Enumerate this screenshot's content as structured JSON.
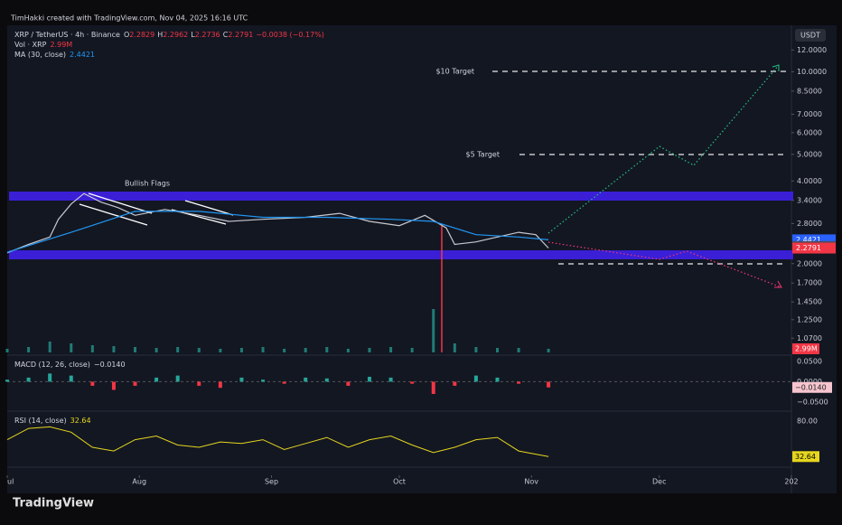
{
  "header": {
    "credit": "TimHakki created with TradingView.com, Nov 04, 2025 16:16 UTC"
  },
  "legend": {
    "symbol": "XRP / TetherUS · 4h · Binance",
    "o_label": "O",
    "open": "2.2829",
    "h_label": "H",
    "high": "2.2962",
    "l_label": "L",
    "low": "2.2736",
    "c_label": "C",
    "close": "2.2791",
    "change": "−0.0038 (−0.17%)",
    "vol_name": "Vol · XRP",
    "vol_value": "2.99M",
    "ma_value": "2.4421"
  },
  "currency": "USDT",
  "annotations": {
    "flags": "Bullish Flags",
    "target10": "$10 Target",
    "target5": "$5 Target"
  },
  "chart": {
    "type": "line",
    "log_scale": true,
    "xlim": [
      0,
      184
    ],
    "ylim": [
      0.95,
      14
    ],
    "xticks": [
      {
        "value": 0,
        "label": "ul"
      },
      {
        "value": 31,
        "label": "Aug"
      },
      {
        "value": 62,
        "label": "Sep"
      },
      {
        "value": 92,
        "label": "Oct"
      },
      {
        "value": 123,
        "label": "Nov"
      },
      {
        "value": 153,
        "label": "Dec"
      },
      {
        "value": 184,
        "label": "202"
      }
    ],
    "yticks": [
      {
        "value": 12,
        "label": "12.0000"
      },
      {
        "value": 10,
        "label": "10.0000"
      },
      {
        "value": 8.5,
        "label": "8.5000"
      },
      {
        "value": 7,
        "label": "7.0000"
      },
      {
        "value": 6,
        "label": "6.0000"
      },
      {
        "value": 5,
        "label": "5.0000"
      },
      {
        "value": 4,
        "label": "4.0000"
      },
      {
        "value": 3.4,
        "label": "3.4000"
      },
      {
        "value": 2.8,
        "label": "2.8000"
      },
      {
        "value": 2,
        "label": "2.0000"
      },
      {
        "value": 1.7,
        "label": "1.7000"
      },
      {
        "value": 1.45,
        "label": "1.4500"
      },
      {
        "value": 1.25,
        "label": "1.2500"
      },
      {
        "value": 1.07,
        "label": "1.0700"
      }
    ],
    "badges": [
      {
        "value": 2.4421,
        "label": "2.4421",
        "color": "#2962ff"
      },
      {
        "value": 2.3096,
        "label": "2.3096",
        "color": "#4a4e5a"
      },
      {
        "value": 2.2791,
        "label": "2.2791",
        "color": "#f23645"
      }
    ],
    "series": [
      {
        "name": "XRP / TetherUS · 4h · Binance",
        "color": "#c8cad0",
        "x": [
          0,
          5,
          10,
          12,
          15,
          18,
          22,
          26,
          30,
          37,
          45,
          52,
          60,
          70,
          78,
          85,
          92,
          98,
          103,
          105,
          110,
          115,
          120,
          124,
          127
        ],
        "values": [
          2.19,
          2.35,
          2.5,
          2.9,
          3.3,
          3.6,
          3.35,
          3.2,
          3.0,
          3.15,
          3.0,
          2.85,
          2.9,
          2.95,
          3.05,
          2.85,
          2.75,
          3.0,
          2.7,
          2.35,
          2.4,
          2.5,
          2.6,
          2.55,
          2.2791
        ]
      },
      {
        "name": "MA (30, close)",
        "color": "#2196f3",
        "x": [
          0,
          15,
          30,
          45,
          60,
          75,
          90,
          100,
          110,
          120,
          127
        ],
        "values": [
          2.2,
          2.6,
          3.1,
          3.1,
          2.95,
          2.95,
          2.9,
          2.85,
          2.55,
          2.5,
          2.4421
        ]
      }
    ]
  },
  "indicators": {
    "x": [
      0,
      5,
      10,
      15,
      20,
      25,
      30,
      35,
      40,
      45,
      50,
      55,
      60,
      65,
      70,
      75,
      80,
      85,
      90,
      95,
      100,
      105,
      110,
      115,
      120,
      127
    ],
    "volume": {
      "color": "#26a69a",
      "ylim": [
        0,
        60
      ],
      "values": [
        4,
        6,
        12,
        10,
        8,
        7,
        6,
        5,
        6,
        5,
        4,
        5,
        6,
        4,
        5,
        6,
        4,
        5,
        6,
        5,
        48,
        10,
        6,
        5,
        5,
        4
      ]
    },
    "macd": {
      "name": "MACD (12, 26, close)",
      "value_label": "−0.0140",
      "ylim": [
        -0.072,
        0.065
      ],
      "yticks": [
        {
          "value": 0.05,
          "label": "0.0500"
        },
        {
          "value": 0,
          "label": "0.0000"
        },
        {
          "value": -0.05,
          "label": "−0.0500"
        }
      ],
      "values": [
        0.005,
        0.01,
        0.02,
        0.015,
        -0.01,
        -0.02,
        -0.01,
        0.01,
        0.015,
        -0.01,
        -0.015,
        0.01,
        0.005,
        -0.005,
        0.01,
        0.008,
        -0.01,
        0.012,
        0.01,
        -0.005,
        -0.03,
        -0.01,
        0.015,
        0.01,
        -0.005,
        -0.014
      ]
    },
    "rsi": {
      "name": "RSI (14, close)",
      "value_label": "32.64",
      "color": "#e6d61e",
      "ylim": [
        18.6,
        92.9
      ],
      "yticks": [
        {
          "value": 80,
          "label": "80.00"
        }
      ],
      "values": [
        55,
        70,
        72,
        65,
        45,
        40,
        55,
        60,
        48,
        45,
        52,
        50,
        55,
        42,
        50,
        58,
        45,
        55,
        60,
        48,
        38,
        45,
        55,
        58,
        40,
        32.64
      ]
    }
  },
  "footer": {
    "brand": "TradingView"
  }
}
